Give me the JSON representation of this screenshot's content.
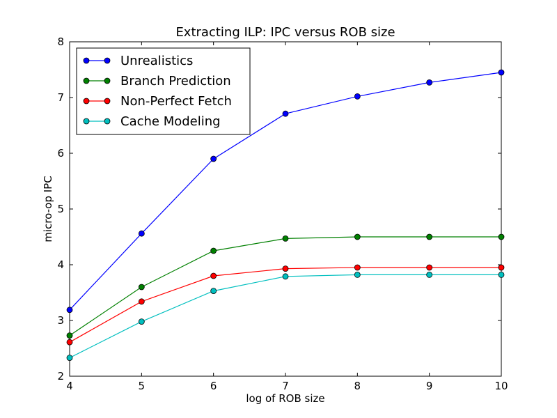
{
  "chart_data": {
    "type": "line",
    "title": "Extracting ILP: IPC versus ROB size",
    "xlabel": "log of ROB size",
    "ylabel": "micro-op IPC",
    "x": [
      4,
      5,
      6,
      7,
      8,
      9,
      10
    ],
    "xlim": [
      4,
      10
    ],
    "ylim": [
      2,
      8
    ],
    "xticks": [
      4,
      5,
      6,
      7,
      8,
      9,
      10
    ],
    "yticks": [
      2,
      3,
      4,
      5,
      6,
      7,
      8
    ],
    "grid": false,
    "legend_position": "top-left",
    "series": [
      {
        "name": "Unrealistics",
        "color": "#0000ff",
        "values": [
          3.19,
          4.56,
          5.9,
          6.71,
          7.02,
          7.27,
          7.45
        ]
      },
      {
        "name": "Branch Prediction",
        "color": "#008000",
        "values": [
          2.73,
          3.6,
          4.25,
          4.47,
          4.5,
          4.5,
          4.5
        ]
      },
      {
        "name": "Non-Perfect Fetch",
        "color": "#ff0000",
        "values": [
          2.61,
          3.34,
          3.8,
          3.93,
          3.95,
          3.95,
          3.95
        ]
      },
      {
        "name": "Cache Modeling",
        "color": "#00bfbf",
        "values": [
          2.33,
          2.98,
          3.53,
          3.79,
          3.82,
          3.82,
          3.82
        ]
      }
    ]
  }
}
